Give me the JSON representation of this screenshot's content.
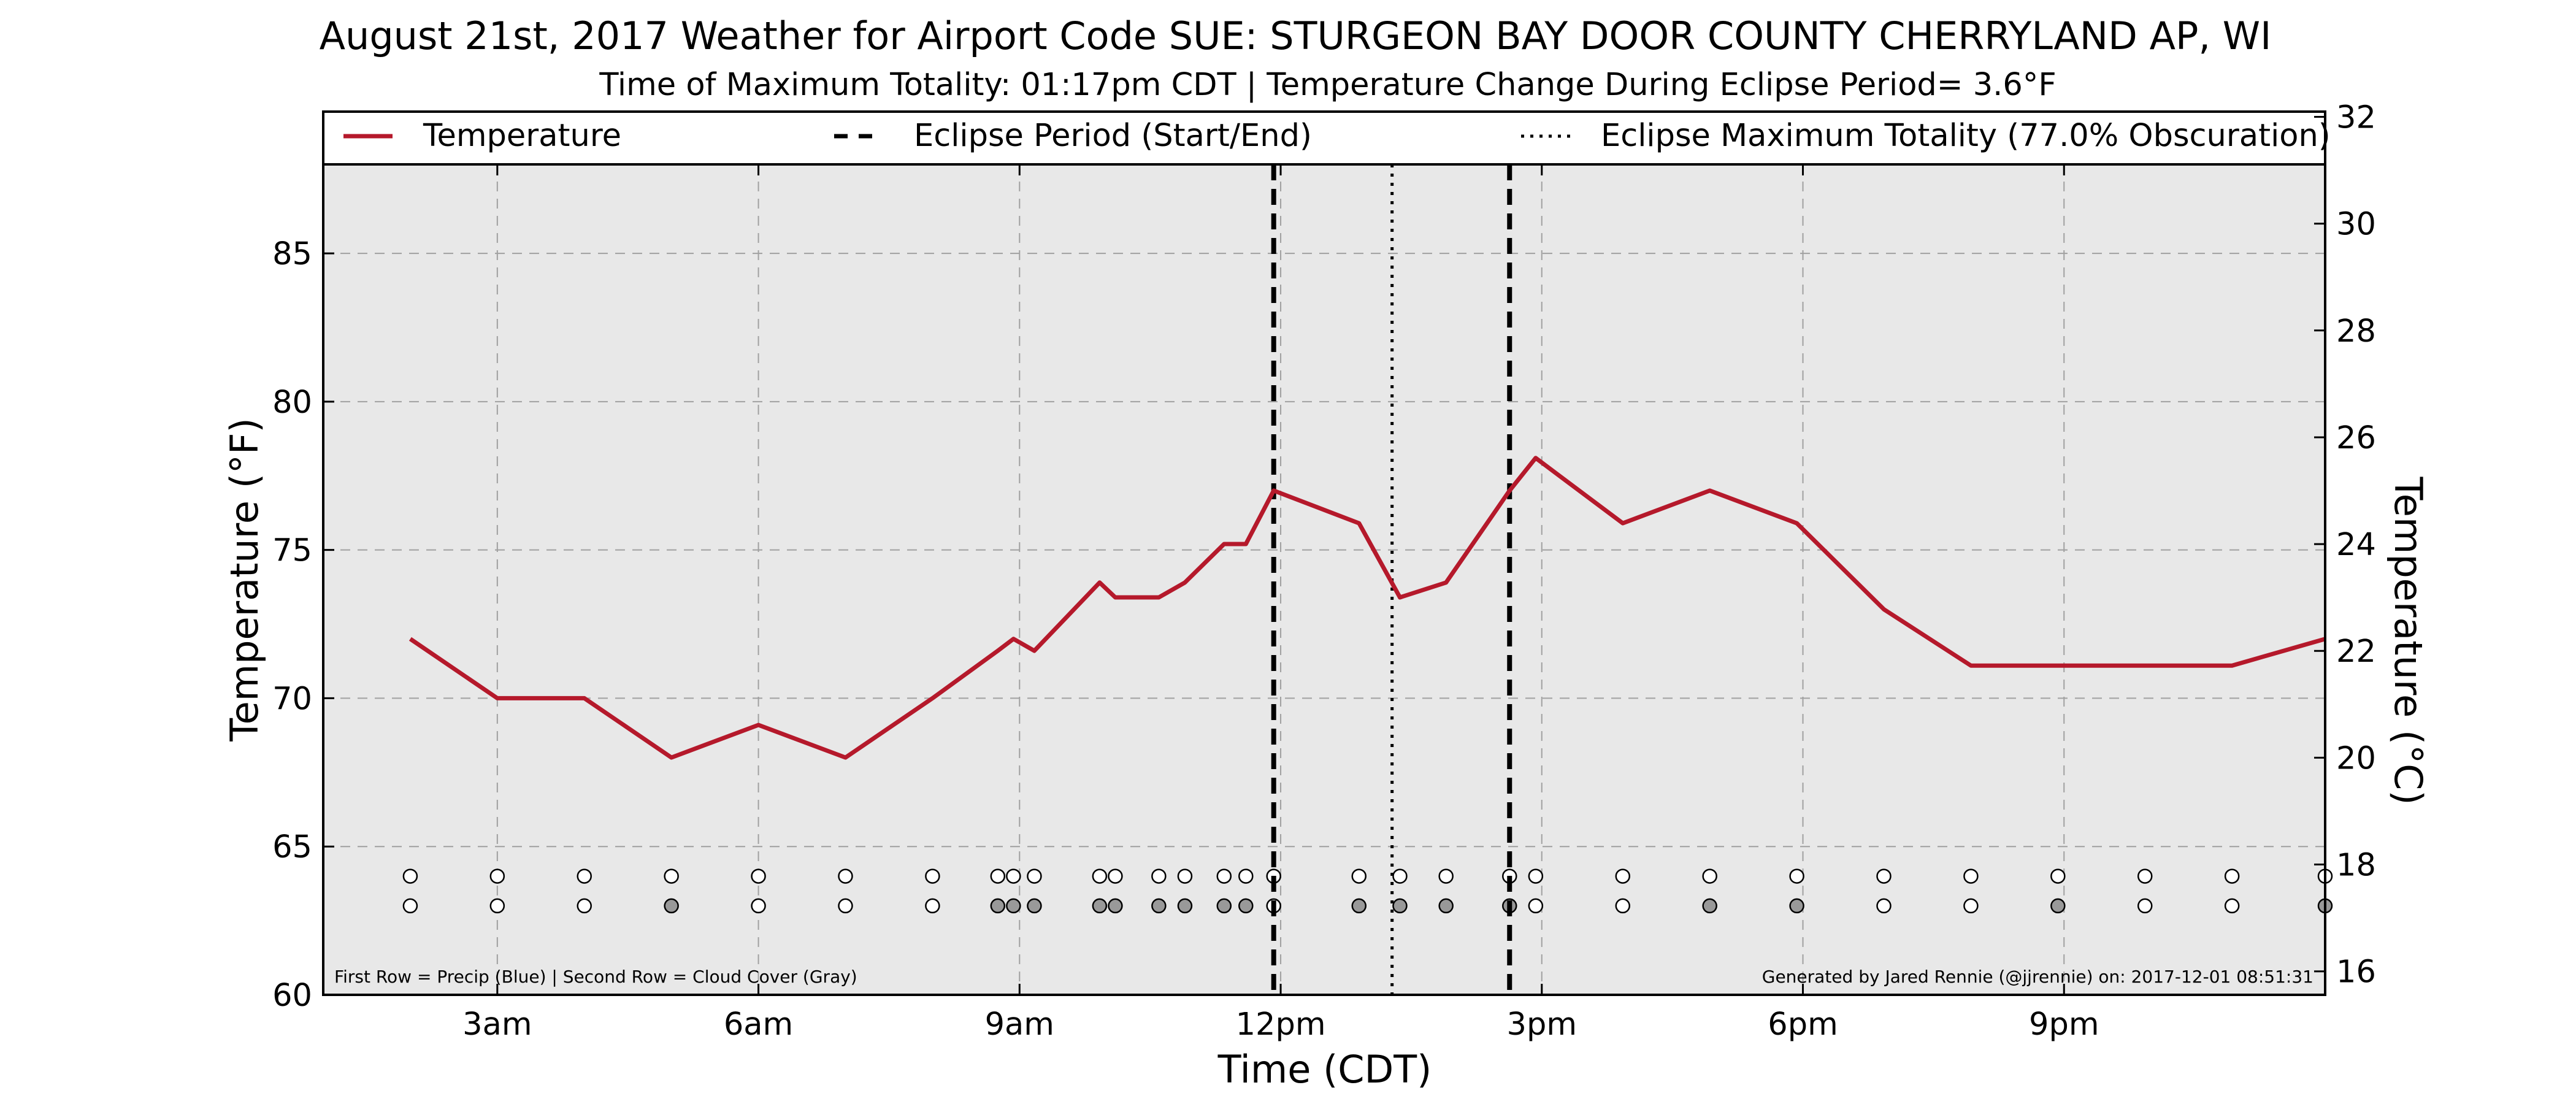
{
  "chart_data": {
    "type": "line",
    "title": "August 21st, 2017 Weather for Airport Code SUE: STURGEON BAY DOOR COUNTY CHERRYLAND AP, WI",
    "subtitle": "Time of Maximum Totality: 01:17pm CDT | Temperature Change During Eclipse Period= 3.6°F",
    "xlabel": "Time (CDT)",
    "ylabel": "Temperature (°F)",
    "y2label": "Temperature (°C)",
    "x_unit": "hour of day (CDT)",
    "xlim": [
      1,
      24
    ],
    "ylim": [
      60,
      88
    ],
    "y2lim": [
      15.56,
      31.11
    ],
    "x_ticks": [
      {
        "value": 3,
        "label": "3am"
      },
      {
        "value": 6,
        "label": "6am"
      },
      {
        "value": 9,
        "label": "9am"
      },
      {
        "value": 12,
        "label": "12pm"
      },
      {
        "value": 15,
        "label": "3pm"
      },
      {
        "value": 18,
        "label": "6pm"
      },
      {
        "value": 21,
        "label": "9pm"
      }
    ],
    "y_ticks": [
      60,
      65,
      70,
      75,
      80,
      85
    ],
    "y2_ticks": [
      16,
      18,
      20,
      22,
      24,
      26,
      28,
      30,
      32
    ],
    "grid": true,
    "legend_placement": "top",
    "legend": [
      {
        "label": "Temperature",
        "style": "solid",
        "color": "#b5192b"
      },
      {
        "label": "Eclipse Period (Start/End)",
        "style": "dashed",
        "color": "#000000"
      },
      {
        "label": "Eclipse Maximum Totality (77.0% Obscuration)",
        "style": "dotted",
        "color": "#000000"
      }
    ],
    "series": [
      {
        "name": "Temperature",
        "color": "#b5192b",
        "x": [
          2,
          3,
          4,
          5,
          6,
          7,
          8,
          8.75,
          8.93,
          9.17,
          9.92,
          10.1,
          10.6,
          10.9,
          11.35,
          11.6,
          11.92,
          12.9,
          13.37,
          13.9,
          14.63,
          14.93,
          15.93,
          16.93,
          17.93,
          18.93,
          19.93,
          20.93,
          21.93,
          22.93,
          24
        ],
        "values": [
          72,
          70,
          70,
          68,
          69.1,
          68,
          70,
          71.6,
          72,
          71.6,
          73.9,
          73.4,
          73.4,
          73.9,
          75.2,
          75.2,
          77,
          75.9,
          73.4,
          73.9,
          77,
          78.1,
          75.9,
          77,
          75.9,
          73,
          71.1,
          71.1,
          71.1,
          71.1,
          72
        ]
      }
    ],
    "eclipse_start_hour": 11.92,
    "eclipse_max_hour": 13.28,
    "eclipse_end_hour": 14.63,
    "obs_rows": {
      "precip_y": 64,
      "cloud_y": 63,
      "x": [
        2,
        3,
        4,
        5,
        6,
        7,
        8,
        8.75,
        8.93,
        9.17,
        9.92,
        10.1,
        10.6,
        10.9,
        11.35,
        11.6,
        11.92,
        12.9,
        13.37,
        13.9,
        14.63,
        14.93,
        15.93,
        16.93,
        17.93,
        18.93,
        19.93,
        20.93,
        21.93,
        22.93,
        24
      ],
      "cloud_filled": [
        false,
        false,
        false,
        true,
        false,
        false,
        false,
        true,
        true,
        true,
        true,
        true,
        true,
        true,
        true,
        true,
        false,
        true,
        true,
        true,
        true,
        false,
        false,
        true,
        true,
        false,
        false,
        true,
        false,
        false,
        true
      ],
      "precip_color": "#ffffff",
      "cloud_fill_color": "#999999"
    },
    "bottom_left_note": "First Row = Precip (Blue) | Second Row = Cloud Cover (Gray)",
    "bottom_right_note": "Generated by Jared Rennie (@jjrennie) on: 2017-12-01 08:51:31",
    "plot_background": "#e8e8e8"
  }
}
